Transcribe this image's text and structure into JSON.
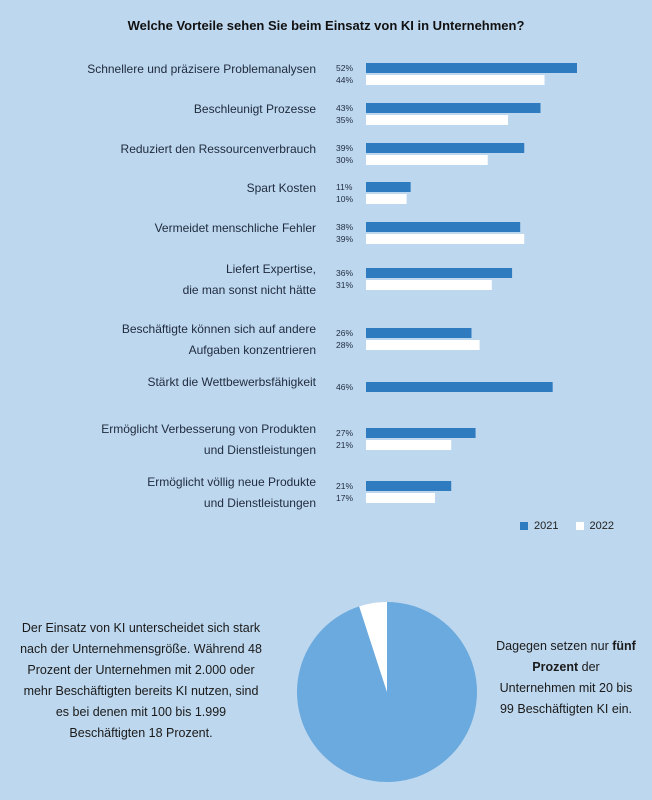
{
  "chart_data": [
    {
      "type": "bar",
      "orientation": "horizontal",
      "title": "Welche Vorteile sehen Sie beim Einsatz von KI in Unternehmen?",
      "categories": [
        [
          "Schnellere und präzisere Problemanalysen"
        ],
        [
          "Beschleunigt Prozesse"
        ],
        [
          "Reduziert den Ressourcenverbrauch"
        ],
        [
          "Spart Kosten"
        ],
        [
          "Vermeidet menschliche Fehler"
        ],
        [
          "Liefert Expertise,",
          "die man sonst nicht hätte"
        ],
        [
          "Beschäftigte können sich auf andere",
          "Aufgaben konzentrieren"
        ],
        [
          "Stärkt die Wettbewerbsfähigkeit"
        ],
        [
          "Ermöglicht Verbesserung von Produkten",
          "und Dienstleistungen"
        ],
        [
          "Ermöglicht völlig neue Produkte",
          "und Dienstleistungen"
        ]
      ],
      "series": [
        {
          "name": "2021",
          "color": "#2e7bbf",
          "values": [
            52,
            43,
            39,
            11,
            38,
            36,
            26,
            46,
            27,
            21
          ]
        },
        {
          "name": "2022",
          "color": "#ffffff",
          "values": [
            44,
            35,
            30,
            10,
            39,
            31,
            28,
            null,
            21,
            17
          ]
        }
      ],
      "value_suffix": "%",
      "legend_position": "bottom-right",
      "grid": false
    },
    {
      "type": "pie",
      "values": [
        95,
        5
      ],
      "colors": [
        "#6aaade",
        "#ffffff"
      ]
    }
  ],
  "text": {
    "left": "Der Einsatz von KI unterscheidet sich stark nach der Unternehmensgröße. Während 48 Prozent der Unternehmen mit 2.000 oder mehr Beschäftigten bereits KI nutzen, sind es bei denen mit 100 bis 1.999 Beschäftigten 18 Prozent.",
    "right_before": "Dagegen setzen nur ",
    "right_bold": "fünf Prozent",
    "right_after": " der Unternehmen mit 20 bis 99 Beschäftigten KI ein."
  }
}
